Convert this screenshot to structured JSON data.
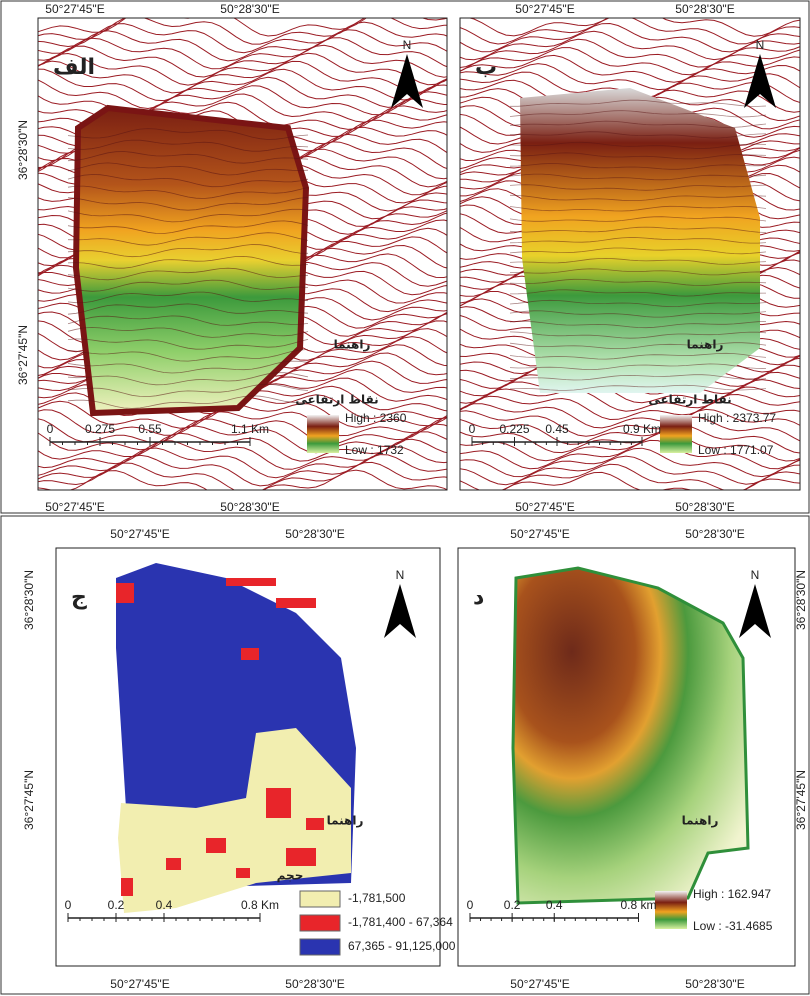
{
  "panels": [
    {
      "label": "الف",
      "north": "N",
      "top_coords": [
        "50°27'45\"E",
        "50°28'30\"E"
      ],
      "side_coords": [
        "36°28'30\"N",
        "36°27'45\"N"
      ],
      "bottom_coords": [
        "50°27'45\"E",
        "50°28'30\"E"
      ],
      "legend_caption": "راهنما",
      "legend_title": "نقاط ارتفاعی",
      "high": "High : 2360",
      "low": "Low : 1732",
      "scale": [
        "0",
        "0.275",
        "0.55",
        "1.1 Km"
      ]
    },
    {
      "label": "ب",
      "north": "N",
      "top_coords": [
        "50°27'45\"E",
        "50°28'30\"E"
      ],
      "bottom_coords": [
        "50°27'45\"E",
        "50°28'30\"E"
      ],
      "legend_caption": "راهنما",
      "legend_title": "نقاط ارتفاعی",
      "high": "High : 2373.77",
      "low": "Low : 1771.07",
      "scale": [
        "0",
        "0.225",
        "0.45",
        "0.9 Km"
      ]
    },
    {
      "label": "ج",
      "north": "N",
      "top_coords": [
        "50°27'45\"E",
        "50°28'30\"E"
      ],
      "side_coords": [
        "36°28'30\"N",
        "36°27'45\"N"
      ],
      "bottom_coords": [
        "50°27'45\"E",
        "50°28'30\"E"
      ],
      "legend_caption": "راهنما",
      "legend_title": "حجم",
      "classes": [
        {
          "label": "-1,781,500",
          "color": "#f2eeb0"
        },
        {
          "label": "-1,781,400 - 67,364",
          "color": "#e8252a"
        },
        {
          "label": "67,365 - 91,125,000",
          "color": "#2a34b0"
        }
      ],
      "scale": [
        "0",
        "0.2",
        "0.4",
        "0.8 Km"
      ]
    },
    {
      "label": "د",
      "north": "N",
      "top_coords": [
        "50°27'45\"E",
        "50°28'30\"E"
      ],
      "side_coords": [
        "36°28'30\"N",
        "36°27'45\"N"
      ],
      "bottom_coords": [
        "50°27'45\"E",
        "50°28'30\"E"
      ],
      "legend_caption": "راهنما",
      "high": "High : 162.947",
      "low": "Low : -31.4685",
      "scale": [
        "0",
        "0.2",
        "0.4",
        "0.8 km"
      ]
    }
  ]
}
